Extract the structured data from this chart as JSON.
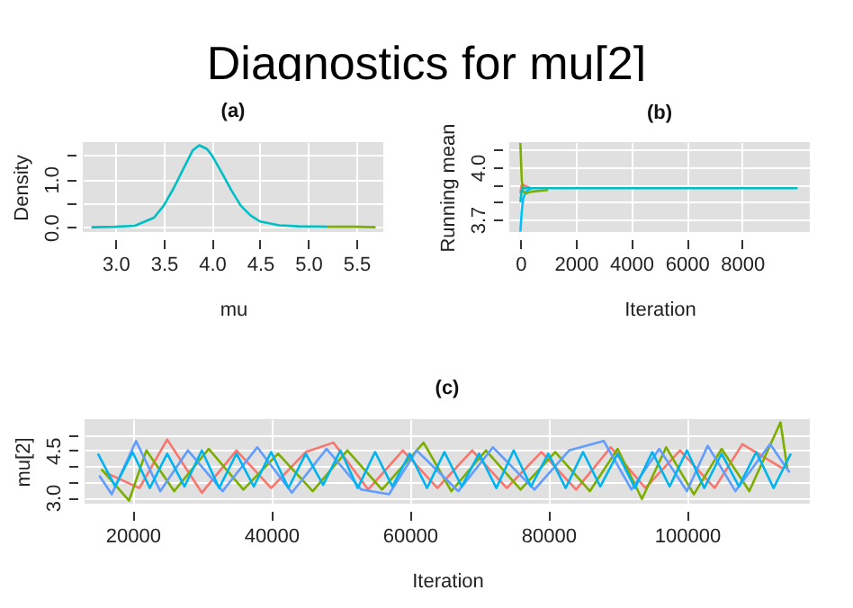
{
  "chart_data": [
    {
      "type": "line",
      "title": "Diagnostics for mu[2]",
      "subtitle": "(a)",
      "xlabel": "mu",
      "ylabel": "Density",
      "xlim": [
        2.66,
        5.78
      ],
      "ylim": [
        -0.1,
        1.775
      ],
      "xticks": [
        {
          "value": 3,
          "label": "3.0"
        },
        3.5,
        {
          "value": 4,
          "label": "4.0"
        },
        4.5,
        {
          "value": 5,
          "label": "5.0"
        },
        5.5
      ],
      "yticks": [
        {
          "value": 0,
          "label": "0.0"
        },
        {
          "value": 0.5,
          "label": null
        },
        {
          "value": 1,
          "label": "1.0"
        },
        {
          "value": 1.5,
          "label": null
        }
      ],
      "grid": true,
      "series": [
        {
          "color": "#7cae00",
          "x": [
            5.2,
            5.5,
            5.7
          ],
          "values": [
            0.01,
            0.01,
            0
          ]
        },
        {
          "color": "#00bfc4",
          "x": [
            2.75,
            3.0,
            3.2,
            3.4,
            3.5,
            3.6,
            3.7,
            3.8,
            3.87,
            3.95,
            4.0,
            4.1,
            4.2,
            4.3,
            4.4,
            4.5,
            4.7,
            4.9,
            5.2
          ],
          "values": [
            0,
            0.01,
            0.03,
            0.2,
            0.45,
            0.8,
            1.2,
            1.6,
            1.71,
            1.63,
            1.5,
            1.15,
            0.78,
            0.45,
            0.25,
            0.12,
            0.04,
            0.02,
            0.01
          ]
        }
      ]
    },
    {
      "type": "line",
      "title": "(b)",
      "xlabel": "Iteration",
      "ylabel": "Running mean",
      "xlim": [
        -400,
        10440
      ],
      "ylim": [
        3.628,
        4.145
      ],
      "xticks": [
        0,
        2000,
        4000,
        6000,
        8000
      ],
      "yticks": [
        {
          "value": 3.7,
          "label": "3.7"
        },
        {
          "value": 3.8,
          "label": null
        },
        {
          "value": 3.9,
          "label": null
        },
        {
          "value": 4,
          "label": "4.0"
        },
        {
          "value": 4.1,
          "label": null
        }
      ],
      "grid": true,
      "series": [
        {
          "color": "#f8766d",
          "x": [
            1,
            50,
            100,
            200,
            400
          ],
          "values": [
            3.85,
            3.9,
            3.9,
            3.89,
            3.88
          ]
        },
        {
          "color": "#00bfff",
          "x": [
            1,
            50,
            100,
            200,
            400
          ],
          "values": [
            3.63,
            3.75,
            3.82,
            3.86,
            3.88
          ]
        },
        {
          "color": "#7cae00",
          "x": [
            1,
            50,
            100,
            200,
            400,
            1000
          ],
          "values": [
            4.14,
            3.92,
            3.86,
            3.85,
            3.86,
            3.87
          ]
        },
        {
          "color": "#00bfc4",
          "x": [
            1,
            50,
            100,
            200,
            400,
            1000,
            2000,
            5000,
            10000
          ],
          "values": [
            3.8,
            3.87,
            3.88,
            3.88,
            3.88,
            3.88,
            3.88,
            3.88,
            3.88
          ]
        }
      ]
    },
    {
      "type": "line",
      "title": "(c)",
      "xlabel": "Iteration",
      "ylabel": "mu[2]",
      "xlim": [
        13080,
        117730
      ],
      "ylim": [
        2.8,
        5.5
      ],
      "xticks": [
        20000,
        40000,
        60000,
        80000,
        100000
      ],
      "yticks": [
        {
          "value": 3,
          "label": "3.0"
        },
        {
          "value": 3.5,
          "label": null
        },
        {
          "value": 4,
          "label": null
        },
        {
          "value": 4.5,
          "label": "4.5"
        },
        {
          "value": 5,
          "label": null
        }
      ],
      "grid": true,
      "series": [
        {
          "color": "#f8766d",
          "x": [
            16000,
            21000,
            25000,
            30000,
            35000,
            40000,
            45000,
            49000,
            54000,
            59000,
            64000,
            69000,
            74000,
            79000,
            84000,
            89000,
            94000,
            99000,
            104000,
            108000,
            114000
          ],
          "values": [
            3.8,
            3.3,
            4.85,
            3.15,
            4.5,
            3.3,
            4.45,
            4.75,
            3.25,
            4.5,
            3.3,
            4.5,
            3.3,
            4.45,
            3.25,
            4.6,
            3.3,
            4.5,
            3.3,
            4.7,
            3.9
          ]
        },
        {
          "color": "#7cae00",
          "x": [
            15500,
            19500,
            22000,
            26000,
            31000,
            36000,
            41000,
            46000,
            51000,
            56000,
            62000,
            66000,
            71000,
            76000,
            81000,
            86000,
            90000,
            93500,
            97000,
            101000,
            105000,
            109000,
            113500,
            114500
          ],
          "values": [
            3.9,
            2.9,
            4.5,
            3.2,
            4.55,
            3.25,
            4.4,
            3.2,
            4.5,
            3.25,
            4.75,
            3.2,
            4.5,
            3.25,
            4.45,
            3.2,
            4.55,
            2.95,
            4.6,
            3.1,
            4.55,
            3.2,
            5.4,
            3.9
          ]
        },
        {
          "color": "#619cff",
          "x": [
            15200,
            17000,
            20500,
            24000,
            28000,
            33000,
            38000,
            43000,
            48000,
            53000,
            57000,
            61000,
            67000,
            72000,
            78000,
            83000,
            88000,
            92000,
            96000,
            100000,
            103000,
            107000,
            112000,
            114800
          ],
          "values": [
            3.7,
            3.1,
            4.8,
            3.2,
            4.5,
            3.2,
            4.6,
            3.15,
            4.55,
            3.25,
            3.1,
            4.5,
            3.2,
            4.6,
            3.25,
            4.5,
            4.8,
            3.25,
            4.55,
            3.2,
            4.65,
            3.2,
            4.7,
            3.8
          ]
        },
        {
          "color": "#00b4f0",
          "x": [
            15000,
            17500,
            20000,
            22500,
            25000,
            27500,
            30000,
            32500,
            35000,
            37500,
            40000,
            42500,
            45000,
            47500,
            50000,
            52500,
            55000,
            57500,
            60000,
            62500,
            65000,
            67500,
            70000,
            72500,
            75000,
            77500,
            80000,
            82500,
            85000,
            87500,
            90000,
            92500,
            95000,
            97500,
            100000,
            102500,
            105000,
            107500,
            110000,
            112500,
            115000
          ],
          "values": [
            4.4,
            3.35,
            4.45,
            3.3,
            4.4,
            3.35,
            4.5,
            3.3,
            4.4,
            3.35,
            4.45,
            3.3,
            4.4,
            3.4,
            4.5,
            3.3,
            4.45,
            3.35,
            4.4,
            3.3,
            4.45,
            3.35,
            4.4,
            3.3,
            4.5,
            3.35,
            4.4,
            3.3,
            4.45,
            3.35,
            4.4,
            3.3,
            4.45,
            3.35,
            4.5,
            3.3,
            4.4,
            3.35,
            4.45,
            3.3,
            4.4
          ]
        }
      ]
    }
  ]
}
